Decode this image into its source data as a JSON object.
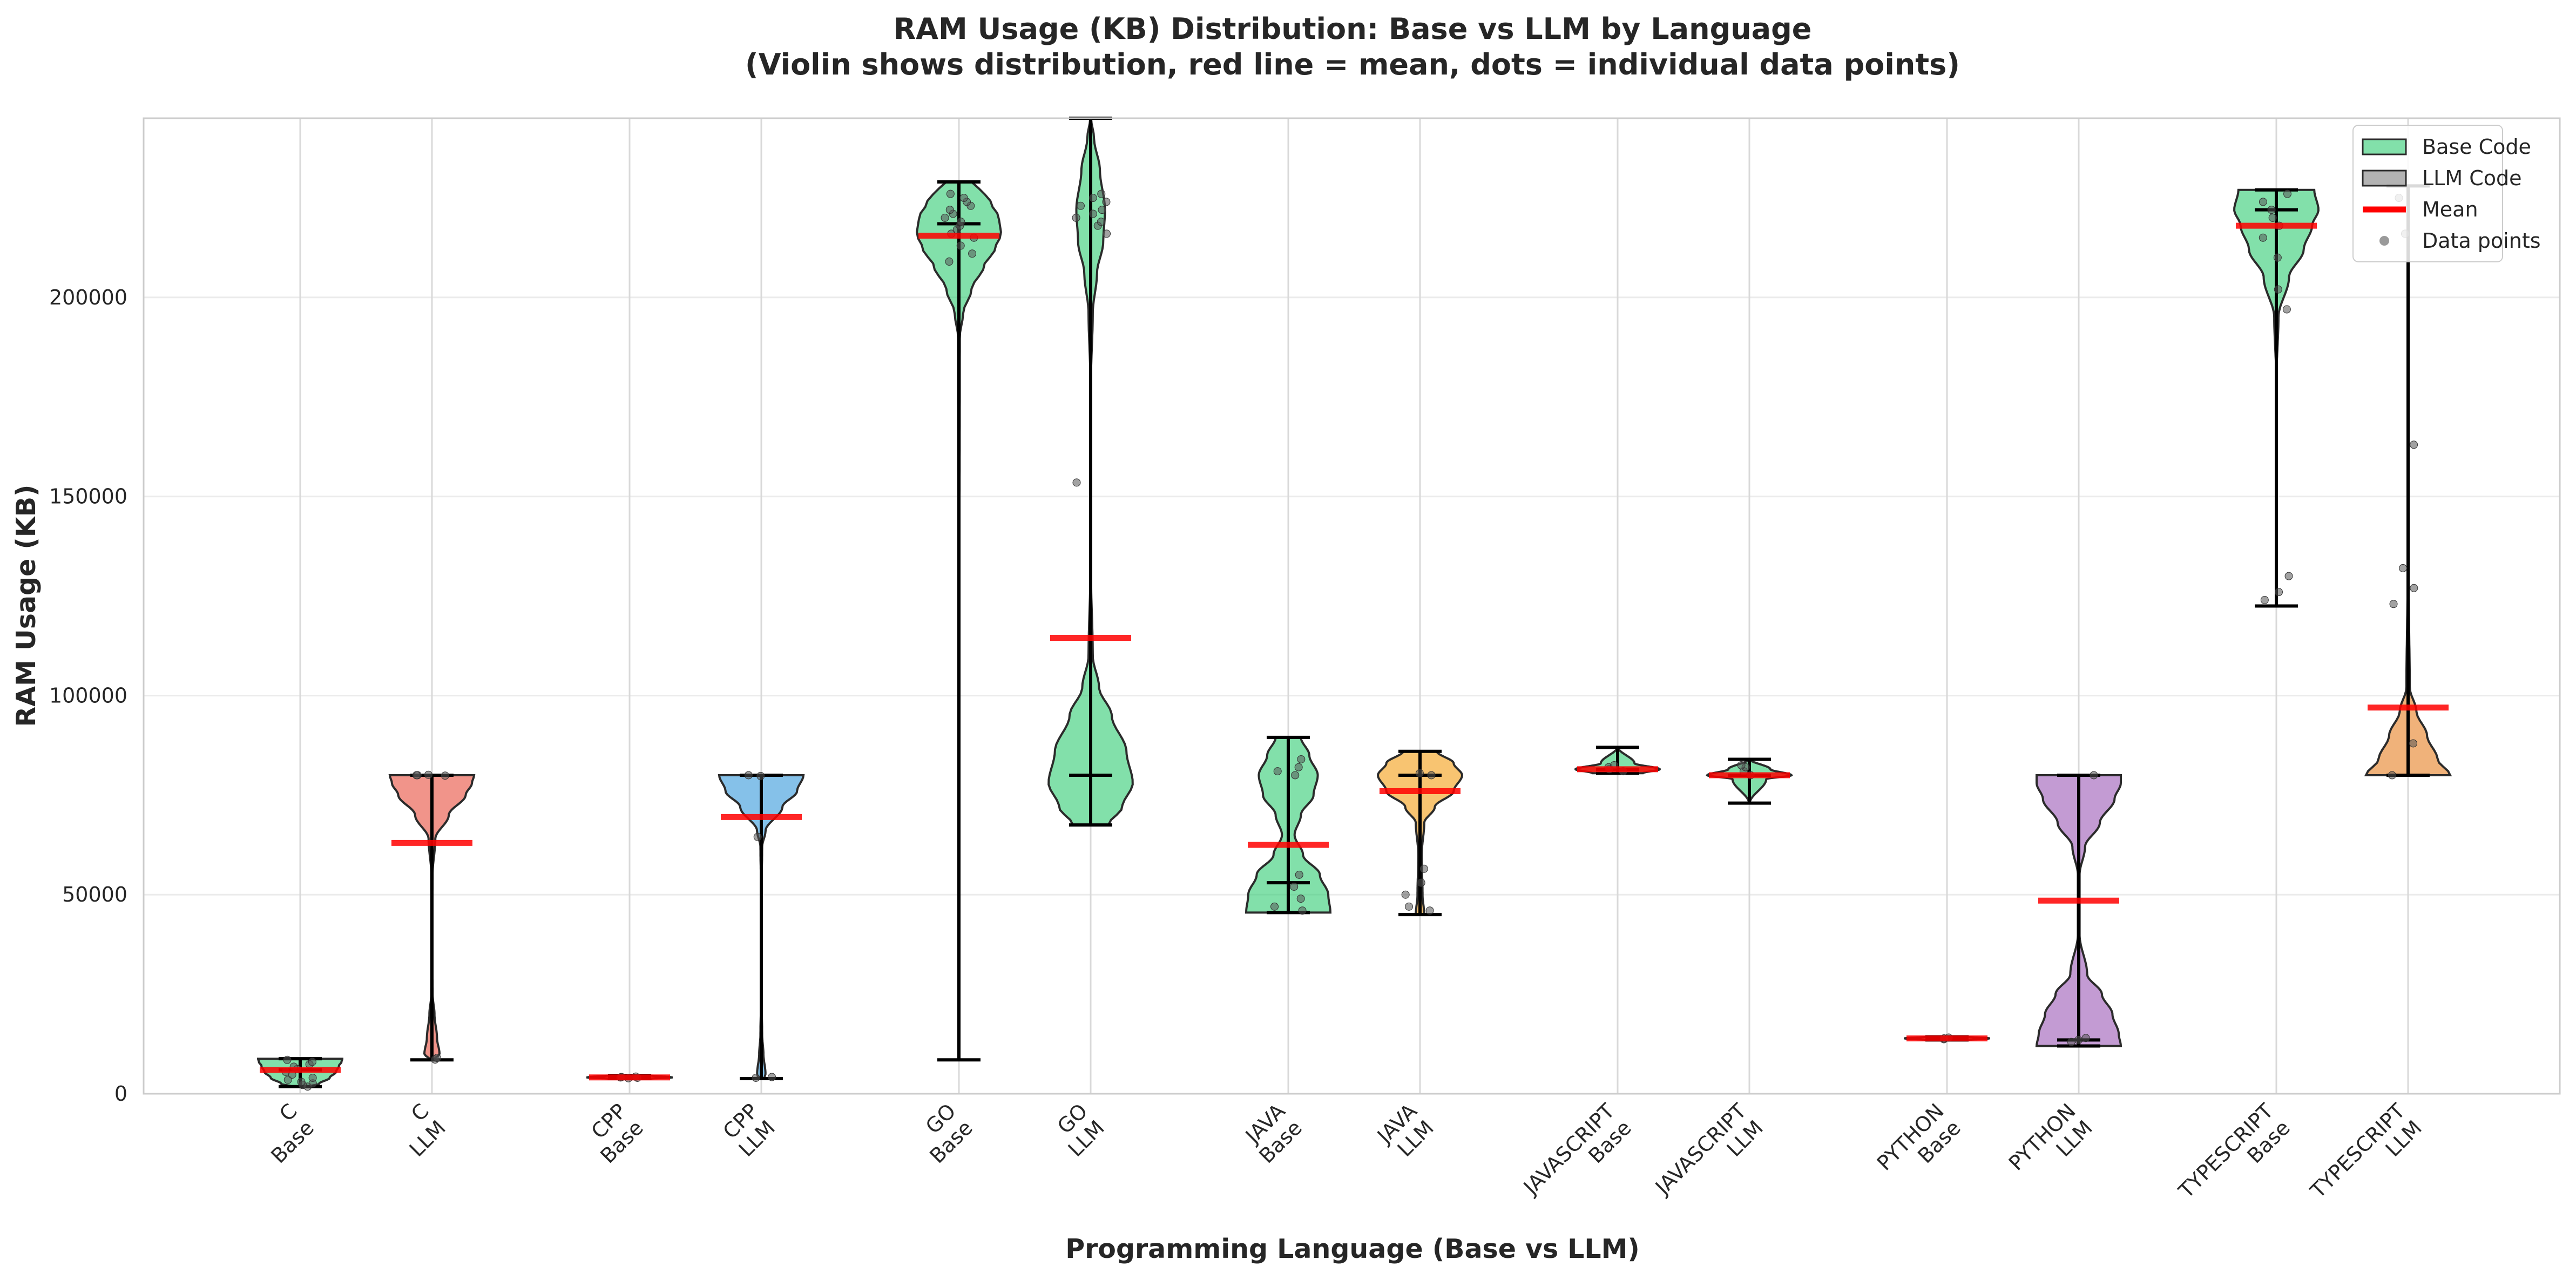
{
  "chart_data": {
    "type": "violin",
    "title": "RAM Usage (KB) Distribution: Base vs LLM by Language",
    "subtitle": "(Violin shows distribution, red line = mean, dots = individual data points)",
    "xlabel": "Programming Language (Base vs LLM)",
    "ylabel": "RAM Usage (KB)",
    "ylim": [
      0,
      245000
    ],
    "yticks": [
      0,
      50000,
      100000,
      150000,
      200000
    ],
    "grid": true,
    "legend_position": "top-right",
    "legend": [
      {
        "label": "Base Code",
        "kind": "patch",
        "color": "#2ecc71"
      },
      {
        "label": "LLM Code",
        "kind": "patch",
        "color": "#808080"
      },
      {
        "label": "Mean",
        "kind": "line",
        "color": "#ff0000"
      },
      {
        "label": "Data points",
        "kind": "dot",
        "color": "#9a9a9a"
      }
    ],
    "categories": [
      {
        "language": "C",
        "group": "Base",
        "color": "#2ecc71",
        "min": 1800,
        "max": 8800,
        "mean": 6000,
        "median": 6000,
        "profile": [
          [
            1800,
            0.2
          ],
          [
            2500,
            0.45
          ],
          [
            4000,
            0.7
          ],
          [
            5500,
            0.85
          ],
          [
            7000,
            0.92
          ],
          [
            8000,
            0.98
          ],
          [
            8800,
            1.0
          ]
        ],
        "points": [
          1800,
          2200,
          2600,
          3000,
          3500,
          4000,
          4800,
          5500,
          6200,
          6800,
          7400,
          8000,
          8500
        ]
      },
      {
        "language": "C",
        "group": "LLM",
        "color": "#e74c3c",
        "min": 8500,
        "max": 80000,
        "mean": 63000,
        "median": 80000,
        "profile": [
          [
            8500,
            0.04
          ],
          [
            10000,
            0.18
          ],
          [
            14000,
            0.12
          ],
          [
            20000,
            0.06
          ],
          [
            25000,
            0.015
          ],
          [
            40000,
            0.005
          ],
          [
            55000,
            0.015
          ],
          [
            64000,
            0.08
          ],
          [
            70000,
            0.4
          ],
          [
            75000,
            0.8
          ],
          [
            78000,
            0.95
          ],
          [
            80000,
            1.0
          ]
        ],
        "points": [
          8600,
          9000,
          80000,
          80100,
          79900,
          80000
        ]
      },
      {
        "language": "CPP",
        "group": "Base",
        "color": "#e67e22",
        "min": 3800,
        "max": 4600,
        "mean": 4100,
        "median": 4100,
        "profile": [
          [
            3800,
            0.5
          ],
          [
            4100,
            1.0
          ],
          [
            4600,
            0.5
          ]
        ],
        "points": [
          3900,
          4000,
          4100,
          4200,
          4300
        ]
      },
      {
        "language": "CPP",
        "group": "LLM",
        "color": "#3498db",
        "min": 3800,
        "max": 80000,
        "mean": 69500,
        "median": 80000,
        "profile": [
          [
            3800,
            0.07
          ],
          [
            5000,
            0.1
          ],
          [
            10000,
            0.05
          ],
          [
            15000,
            0.02
          ],
          [
            25000,
            0.005
          ],
          [
            50000,
            0.005
          ],
          [
            62000,
            0.02
          ],
          [
            66000,
            0.1
          ],
          [
            72000,
            0.5
          ],
          [
            76000,
            0.85
          ],
          [
            80000,
            1.0
          ]
        ],
        "points": [
          4000,
          4200,
          64500,
          80000,
          79800
        ]
      },
      {
        "language": "GO",
        "group": "Base",
        "color": "#2ecc71",
        "min": 8500,
        "max": 229000,
        "mean": 215500,
        "median": 218500,
        "profile": [
          [
            8500,
            0.004
          ],
          [
            100000,
            0.004
          ],
          [
            190000,
            0.02
          ],
          [
            196000,
            0.1
          ],
          [
            202000,
            0.3
          ],
          [
            208000,
            0.6
          ],
          [
            212000,
            0.85
          ],
          [
            216000,
            1.0
          ],
          [
            220000,
            0.95
          ],
          [
            224000,
            0.75
          ],
          [
            228000,
            0.45
          ],
          [
            229000,
            0.3
          ]
        ],
        "points": [
          209000,
          211000,
          213000,
          215000,
          216000,
          217000,
          218000,
          219000,
          220000,
          221000,
          222000,
          223000,
          224000,
          225000,
          226000
        ]
      },
      {
        "language": "GO",
        "group": "LLM",
        "color": "#2ecc71",
        "min": 67500,
        "max": 245000,
        "mean": 114500,
        "median": 80000,
        "profile": [
          [
            67500,
            0.42
          ],
          [
            72000,
            0.75
          ],
          [
            78000,
            1.0
          ],
          [
            86000,
            0.85
          ],
          [
            95000,
            0.5
          ],
          [
            102000,
            0.2
          ],
          [
            110000,
            0.05
          ],
          [
            130000,
            0.01
          ],
          [
            180000,
            0.01
          ],
          [
            196000,
            0.05
          ],
          [
            206000,
            0.15
          ],
          [
            214000,
            0.3
          ],
          [
            222000,
            0.34
          ],
          [
            232000,
            0.22
          ],
          [
            240000,
            0.08
          ],
          [
            245000,
            0.01
          ]
        ],
        "points": [
          153500,
          216000,
          218000,
          219000,
          220000,
          221000,
          222000,
          223000,
          224000,
          225000,
          226000
        ]
      },
      {
        "language": "JAVA",
        "group": "Base",
        "color": "#2ecc71",
        "min": 45500,
        "max": 89500,
        "mean": 62500,
        "median": 53000,
        "profile": [
          [
            45500,
            1.0
          ],
          [
            50000,
            0.95
          ],
          [
            55000,
            0.75
          ],
          [
            60000,
            0.35
          ],
          [
            65000,
            0.15
          ],
          [
            70000,
            0.3
          ],
          [
            75000,
            0.6
          ],
          [
            80000,
            0.7
          ],
          [
            85000,
            0.5
          ],
          [
            89500,
            0.3
          ]
        ],
        "points": [
          46000,
          47000,
          49000,
          52000,
          55000,
          80000,
          81000,
          82000,
          84000
        ]
      },
      {
        "language": "JAVA",
        "group": "LLM",
        "color": "#f39c12",
        "min": 45000,
        "max": 86000,
        "mean": 76000,
        "median": 80000,
        "profile": [
          [
            45000,
            0.1
          ],
          [
            50000,
            0.06
          ],
          [
            60000,
            0.04
          ],
          [
            68000,
            0.1
          ],
          [
            72000,
            0.35
          ],
          [
            76000,
            0.8
          ],
          [
            80000,
            1.0
          ],
          [
            83000,
            0.8
          ],
          [
            86000,
            0.4
          ]
        ],
        "points": [
          46000,
          47000,
          50000,
          53000,
          56500,
          80000,
          80500
        ]
      },
      {
        "language": "JAVASCRIPT",
        "group": "Base",
        "color": "#2ecc71",
        "min": 80500,
        "max": 87000,
        "mean": 81500,
        "median": 81500,
        "profile": [
          [
            80500,
            0.6
          ],
          [
            81500,
            1.0
          ],
          [
            83000,
            0.4
          ],
          [
            87000,
            0.01
          ]
        ],
        "points": [
          81000,
          81500,
          82000,
          82500
        ]
      },
      {
        "language": "JAVASCRIPT",
        "group": "LLM",
        "color": "#2ecc71",
        "min": 73000,
        "max": 84000,
        "mean": 80000,
        "median": 80000,
        "profile": [
          [
            73000,
            0.01
          ],
          [
            79000,
            0.4
          ],
          [
            80000,
            1.0
          ],
          [
            81500,
            0.5
          ],
          [
            84000,
            0.01
          ]
        ],
        "points": [
          80000,
          81000,
          82000,
          82500
        ]
      },
      {
        "language": "PYTHON",
        "group": "Base",
        "color": "#2ecc71",
        "min": 13500,
        "max": 14300,
        "mean": 13900,
        "median": 13900,
        "profile": [
          [
            13500,
            0.5
          ],
          [
            13900,
            1.0
          ],
          [
            14300,
            0.5
          ]
        ],
        "points": [
          13700,
          13900,
          14100
        ]
      },
      {
        "language": "PYTHON",
        "group": "LLM",
        "color": "#9b59b6",
        "min": 12000,
        "max": 80000,
        "mean": 48500,
        "median": 13500,
        "profile": [
          [
            12000,
            1.0
          ],
          [
            15000,
            0.95
          ],
          [
            20000,
            0.8
          ],
          [
            25000,
            0.55
          ],
          [
            30000,
            0.2
          ],
          [
            40000,
            0.02
          ],
          [
            55000,
            0.02
          ],
          [
            62000,
            0.15
          ],
          [
            68000,
            0.5
          ],
          [
            74000,
            0.85
          ],
          [
            78000,
            1.0
          ],
          [
            80000,
            1.0
          ]
        ],
        "points": [
          13000,
          13500,
          14000,
          80000
        ]
      },
      {
        "language": "TYPESCRIPT",
        "group": "Base",
        "color": "#2ecc71",
        "min": 122500,
        "max": 227000,
        "mean": 218000,
        "median": 222000,
        "profile": [
          [
            122500,
            0.005
          ],
          [
            180000,
            0.005
          ],
          [
            195000,
            0.05
          ],
          [
            205000,
            0.3
          ],
          [
            212000,
            0.65
          ],
          [
            218000,
            0.85
          ],
          [
            222000,
            1.0
          ],
          [
            227000,
            0.9
          ]
        ],
        "points": [
          124000,
          126000,
          130000,
          197000,
          202000,
          210000,
          215000,
          218000,
          220000,
          222000,
          224000,
          226000
        ]
      },
      {
        "language": "TYPESCRIPT",
        "group": "LLM",
        "color": "#e67e22",
        "min": 80000,
        "max": 228000,
        "mean": 97000,
        "median": 80000,
        "profile": [
          [
            80000,
            1.0
          ],
          [
            84000,
            0.7
          ],
          [
            90000,
            0.45
          ],
          [
            96000,
            0.2
          ],
          [
            102000,
            0.04
          ],
          [
            130000,
            0.01
          ],
          [
            200000,
            0.01
          ],
          [
            228000,
            0.01
          ]
        ],
        "points": [
          80000,
          88000,
          123000,
          127000,
          132000,
          163000,
          216000,
          225000
        ]
      }
    ]
  }
}
